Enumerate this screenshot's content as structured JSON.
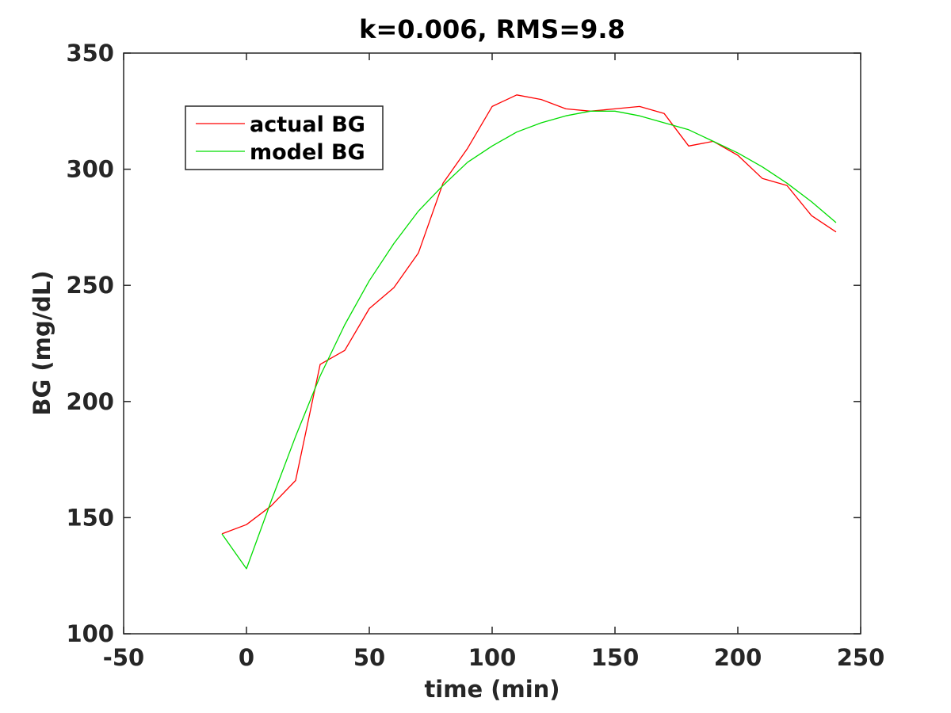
{
  "chart_data": {
    "type": "line",
    "title": "k=0.006, RMS=9.8",
    "xlabel": "time (min)",
    "ylabel": "BG (mg/dL)",
    "xlim": [
      -50,
      250
    ],
    "ylim": [
      100,
      350
    ],
    "xticks": [
      -50,
      0,
      50,
      100,
      150,
      200,
      250
    ],
    "yticks": [
      100,
      150,
      200,
      250,
      300,
      350
    ],
    "xtick_labels": [
      "-50",
      "0",
      "50",
      "100",
      "150",
      "200",
      "250"
    ],
    "ytick_labels": [
      "100",
      "150",
      "200",
      "250",
      "300",
      "350"
    ],
    "grid": false,
    "legend_position": "top-left",
    "series": [
      {
        "name": "actual BG",
        "color": "#ff0000",
        "x": [
          -10,
          0,
          10,
          20,
          30,
          40,
          50,
          60,
          70,
          80,
          90,
          100,
          110,
          120,
          130,
          140,
          150,
          160,
          170,
          180,
          190,
          200,
          210,
          220,
          230,
          240
        ],
        "y": [
          143,
          147,
          155,
          166,
          216,
          222,
          240,
          249,
          264,
          294,
          309,
          327,
          332,
          330,
          326,
          325,
          326,
          327,
          324,
          310,
          312,
          306,
          296,
          293,
          280,
          273
        ]
      },
      {
        "name": "model BG",
        "color": "#00dd00",
        "x": [
          -10,
          0,
          10,
          20,
          30,
          40,
          50,
          60,
          70,
          80,
          90,
          100,
          110,
          120,
          130,
          140,
          150,
          160,
          170,
          180,
          190,
          200,
          210,
          220,
          230,
          240
        ],
        "y": [
          143,
          128,
          157,
          185,
          211,
          233,
          252,
          268,
          282,
          293,
          303,
          310,
          316,
          320,
          323,
          325,
          325,
          323,
          320,
          317,
          312,
          307,
          301,
          294,
          286,
          277
        ]
      }
    ]
  }
}
